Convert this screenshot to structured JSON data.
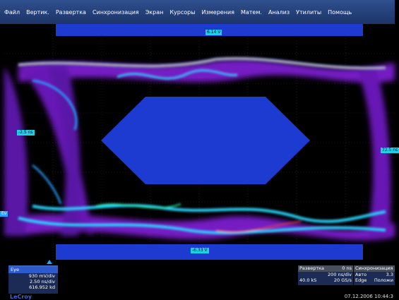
{
  "menu": [
    "Файл",
    "Вертик.",
    "Развертка",
    "Синхронизация",
    "Экран",
    "Курсоры",
    "Измерения",
    "Матем.",
    "Анализ",
    "Утилиты",
    "Помощь"
  ],
  "labels": {
    "top": "6.14 V",
    "bottom": "-6.33 V",
    "left": "-2.5 ns",
    "right": "72.5 ns",
    "marker": "Ev"
  },
  "channel": {
    "title": "Eye",
    "volts_div": "930 mV/div",
    "time_div": "2.50 ns/div",
    "count": "616.952 kd"
  },
  "timebase": {
    "title": "Развертка",
    "value": "0 ns",
    "ns_div": "200 ns/div",
    "samples": "40.0 kS",
    "rate": "20 GS/s"
  },
  "sync": {
    "title": "Синхронизация",
    "mode": "Авто",
    "level": "3.3",
    "type": "Edge",
    "slope": "Положи"
  },
  "brand": "LeCroy",
  "datetime": "07.12.2006 10:44:3",
  "colors": {
    "menubar": "#2f4f8e",
    "mask": "#1d3bd0",
    "trace_outer": "#9a26f0",
    "label": "#18d2e6"
  }
}
